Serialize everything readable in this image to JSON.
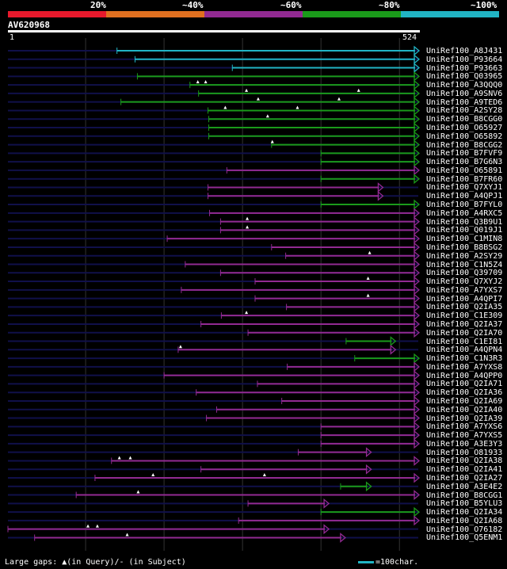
{
  "legend": {
    "segments": [
      {
        "color": "#e8192c"
      },
      {
        "color": "#e07020"
      },
      {
        "color": "#922a92"
      },
      {
        "color": "#1a9a1a"
      },
      {
        "color": "#21b4c4"
      }
    ],
    "labels": [
      "20%",
      "~40%",
      "~60%",
      "~80%",
      "~100%"
    ]
  },
  "query": {
    "name": "AV620968",
    "start_label": "1",
    "end_label": "524",
    "length": 524
  },
  "colors": {
    "grid": "#333333",
    "query_line": "#10104a",
    "gap": "#10104a"
  },
  "hits": [
    {
      "name": "UniRef100_A8J431",
      "color": "#21b4c4",
      "start": 140,
      "end": 524,
      "trunc": true,
      "gaps": []
    },
    {
      "name": "UniRef100_P93664",
      "color": "#21b4c4",
      "start": 163,
      "end": 524,
      "trunc": true,
      "gaps": []
    },
    {
      "name": "UniRef100_P93663",
      "color": "#21b4c4",
      "start": 287,
      "end": 524,
      "trunc": true,
      "gaps": []
    },
    {
      "name": "UniRef100_Q03965",
      "color": "#1a9a1a",
      "start": 166,
      "end": 524,
      "trunc": true,
      "gaps": []
    },
    {
      "name": "UniRef100_A3QQQ0",
      "color": "#1a9a1a",
      "start": 233,
      "end": 524,
      "trunc": true,
      "gaps": [
        243,
        253
      ]
    },
    {
      "name": "UniRef100_A9SNV6",
      "color": "#1a9a1a",
      "start": 244,
      "end": 524,
      "trunc": true,
      "gaps": [
        305,
        448
      ]
    },
    {
      "name": "UniRef100_A9TED6",
      "color": "#1a9a1a",
      "start": 145,
      "end": 524,
      "trunc": true,
      "gaps": [
        320,
        423
      ]
    },
    {
      "name": "UniRef100_A2SY28",
      "color": "#1a9a1a",
      "start": 256,
      "end": 524,
      "trunc": true,
      "gaps": [
        278,
        370
      ]
    },
    {
      "name": "UniRef100_B8CGG0",
      "color": "#1a9a1a",
      "start": 257,
      "end": 524,
      "trunc": true,
      "gaps": [
        332
      ]
    },
    {
      "name": "UniRef100_O65927",
      "color": "#1a9a1a",
      "start": 257,
      "end": 524,
      "trunc": true,
      "gaps": []
    },
    {
      "name": "UniRef100_O65892",
      "color": "#1a9a1a",
      "start": 257,
      "end": 524,
      "trunc": true,
      "gaps": []
    },
    {
      "name": "UniRef100_B8CGG2",
      "color": "#1a9a1a",
      "start": 337,
      "end": 524,
      "trunc": true,
      "gaps": [
        338
      ]
    },
    {
      "name": "UniRef100_B7FVF9",
      "color": "#1a9a1a",
      "start": 400,
      "end": 524,
      "trunc": true,
      "gaps": []
    },
    {
      "name": "UniRef100_B7G6N3",
      "color": "#1a9a1a",
      "start": 400,
      "end": 524,
      "trunc": true,
      "gaps": []
    },
    {
      "name": "UniRef100_O65891",
      "color": "#922a92",
      "start": 280,
      "end": 524,
      "trunc": true,
      "gaps": []
    },
    {
      "name": "UniRef100_B7FR60",
      "color": "#1a9a1a",
      "start": 400,
      "end": 524,
      "trunc": true,
      "gaps": []
    },
    {
      "name": "UniRef100_Q7XYJ1",
      "color": "#922a92",
      "start": 256,
      "end": 478,
      "trunc": true,
      "gaps": []
    },
    {
      "name": "UniRef100_A4QPJ1",
      "color": "#922a92",
      "start": 256,
      "end": 478,
      "trunc": true,
      "gaps": []
    },
    {
      "name": "UniRef100_B7FYL0",
      "color": "#1a9a1a",
      "start": 400,
      "end": 524,
      "trunc": true,
      "gaps": []
    },
    {
      "name": "UniRef100_A4RXC5",
      "color": "#922a92",
      "start": 258,
      "end": 524,
      "trunc": true,
      "gaps": []
    },
    {
      "name": "UniRef100_Q3B9U1",
      "color": "#922a92",
      "start": 272,
      "end": 524,
      "trunc": true,
      "gaps": [
        306
      ]
    },
    {
      "name": "UniRef100_Q019J1",
      "color": "#922a92",
      "start": 272,
      "end": 524,
      "trunc": true,
      "gaps": [
        306
      ]
    },
    {
      "name": "UniRef100_C1MIN8",
      "color": "#922a92",
      "start": 204,
      "end": 524,
      "trunc": true,
      "gaps": []
    },
    {
      "name": "UniRef100_B8BSG2",
      "color": "#922a92",
      "start": 337,
      "end": 524,
      "trunc": true,
      "gaps": []
    },
    {
      "name": "UniRef100_A2SY29",
      "color": "#922a92",
      "start": 355,
      "end": 524,
      "trunc": true,
      "gaps": [
        462
      ]
    },
    {
      "name": "UniRef100_C1N5Z4",
      "color": "#922a92",
      "start": 227,
      "end": 524,
      "trunc": true,
      "gaps": []
    },
    {
      "name": "UniRef100_Q39709",
      "color": "#922a92",
      "start": 272,
      "end": 524,
      "trunc": true,
      "gaps": []
    },
    {
      "name": "UniRef100_Q7XYJ2",
      "color": "#922a92",
      "start": 316,
      "end": 524,
      "trunc": true,
      "gaps": [
        460
      ]
    },
    {
      "name": "UniRef100_A7YXS7",
      "color": "#922a92",
      "start": 222,
      "end": 524,
      "trunc": true,
      "gaps": []
    },
    {
      "name": "UniRef100_A4QPI7",
      "color": "#922a92",
      "start": 316,
      "end": 524,
      "trunc": true,
      "gaps": [
        460
      ]
    },
    {
      "name": "UniRef100_Q2IA35",
      "color": "#922a92",
      "start": 356,
      "end": 524,
      "trunc": true,
      "gaps": []
    },
    {
      "name": "UniRef100_C1E309",
      "color": "#922a92",
      "start": 273,
      "end": 524,
      "trunc": true,
      "gaps": [
        305
      ]
    },
    {
      "name": "UniRef100_Q2IA37",
      "color": "#922a92",
      "start": 247,
      "end": 524,
      "trunc": true,
      "gaps": []
    },
    {
      "name": "UniRef100_Q2IA70",
      "color": "#922a92",
      "start": 307,
      "end": 524,
      "trunc": true,
      "gaps": []
    },
    {
      "name": "UniRef100_C1EI81",
      "color": "#1a9a1a",
      "start": 432,
      "end": 494,
      "trunc": true,
      "gaps": []
    },
    {
      "name": "UniRef100_A4QPN4",
      "color": "#922a92",
      "start": 218,
      "end": 494,
      "trunc": true,
      "gaps": [
        221
      ]
    },
    {
      "name": "UniRef100_C1N3R3",
      "color": "#1a9a1a",
      "start": 443,
      "end": 524,
      "trunc": true,
      "gaps": []
    },
    {
      "name": "UniRef100_A7YXS8",
      "color": "#922a92",
      "start": 357,
      "end": 524,
      "trunc": true,
      "gaps": []
    },
    {
      "name": "UniRef100_A4QPP0",
      "color": "#922a92",
      "start": 200,
      "end": 524,
      "trunc": true,
      "gaps": []
    },
    {
      "name": "UniRef100_Q2IA71",
      "color": "#922a92",
      "start": 319,
      "end": 524,
      "trunc": true,
      "gaps": []
    },
    {
      "name": "UniRef100_Q2IA36",
      "color": "#922a92",
      "start": 241,
      "end": 524,
      "trunc": true,
      "gaps": []
    },
    {
      "name": "UniRef100_Q2IA69",
      "color": "#922a92",
      "start": 350,
      "end": 524,
      "trunc": true,
      "gaps": []
    },
    {
      "name": "UniRef100_Q2IA40",
      "color": "#922a92",
      "start": 267,
      "end": 524,
      "trunc": true,
      "gaps": []
    },
    {
      "name": "UniRef100_Q2IA39",
      "color": "#922a92",
      "start": 254,
      "end": 524,
      "trunc": true,
      "gaps": []
    },
    {
      "name": "UniRef100_A7YXS6",
      "color": "#922a92",
      "start": 400,
      "end": 524,
      "trunc": true,
      "gaps": []
    },
    {
      "name": "UniRef100_A7YXS5",
      "color": "#922a92",
      "start": 400,
      "end": 524,
      "trunc": true,
      "gaps": []
    },
    {
      "name": "UniRef100_A3E3Y3",
      "color": "#922a92",
      "start": 400,
      "end": 524,
      "trunc": true,
      "gaps": []
    },
    {
      "name": "UniRef100_O81933",
      "color": "#922a92",
      "start": 371,
      "end": 463,
      "trunc": true,
      "gaps": []
    },
    {
      "name": "UniRef100_Q2IA38",
      "color": "#922a92",
      "start": 133,
      "end": 524,
      "trunc": true,
      "gaps": [
        143,
        157
      ]
    },
    {
      "name": "UniRef100_Q2IA41",
      "color": "#922a92",
      "start": 247,
      "end": 463,
      "trunc": true,
      "gaps": []
    },
    {
      "name": "UniRef100_Q2IA27",
      "color": "#922a92",
      "start": 112,
      "end": 524,
      "trunc": true,
      "gaps": [
        186,
        328
      ]
    },
    {
      "name": "UniRef100_A3E4E2",
      "color": "#1a9a1a",
      "start": 425,
      "end": 463,
      "trunc": true,
      "gaps": []
    },
    {
      "name": "UniRef100_B8CGG1",
      "color": "#922a92",
      "start": 88,
      "end": 524,
      "trunc": true,
      "gaps": [
        167
      ]
    },
    {
      "name": "UniRef100_B5YLU3",
      "color": "#922a92",
      "start": 307,
      "end": 409,
      "trunc": true,
      "gaps": []
    },
    {
      "name": "UniRef100_Q2IA34",
      "color": "#1a9a1a",
      "start": 400,
      "end": 524,
      "trunc": true,
      "gaps": []
    },
    {
      "name": "UniRef100_Q2IA68",
      "color": "#922a92",
      "start": 295,
      "end": 524,
      "trunc": true,
      "gaps": []
    },
    {
      "name": "UniRef100_O76182",
      "color": "#922a92",
      "start": 1,
      "end": 409,
      "trunc": true,
      "gaps": [
        103,
        115
      ]
    },
    {
      "name": "UniRef100_Q5ENM1",
      "color": "#922a92",
      "start": 35,
      "end": 430,
      "trunc": true,
      "gaps": [
        153
      ]
    }
  ],
  "footer": {
    "gaps_text": "Large gaps: ▲(in Query)/- (in Subject)",
    "scale_text": "=100char."
  }
}
